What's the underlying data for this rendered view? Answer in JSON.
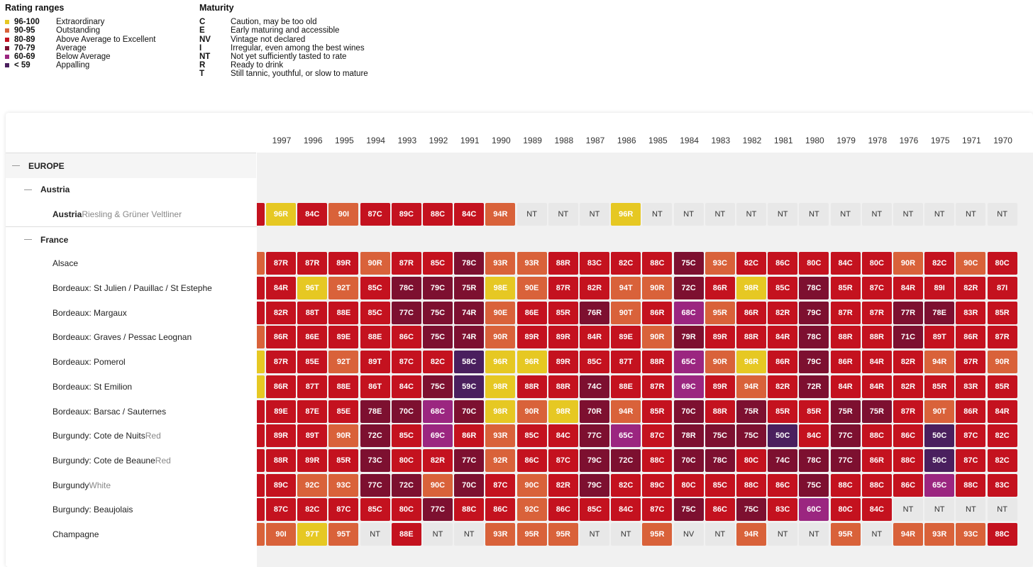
{
  "colors": {
    "r96": "#e6c823",
    "r90": "#d9623a",
    "r80": "#c4121f",
    "r70": "#7d1030",
    "r60": "#9b2680",
    "r59": "#4a1f5e",
    "nt": "#e8e8e8"
  },
  "legend": {
    "rating_title": "Rating ranges",
    "ratings": [
      {
        "code": "96-100",
        "label": "Extraordinary",
        "color": "#e6c823"
      },
      {
        "code": "90-95",
        "label": "Outstanding",
        "color": "#d9623a"
      },
      {
        "code": "80-89",
        "label": "Above Average to Excellent",
        "color": "#c4121f"
      },
      {
        "code": "70-79",
        "label": "Average",
        "color": "#7d1030"
      },
      {
        "code": "60-69",
        "label": "Below Average",
        "color": "#9b2680"
      },
      {
        "code": "< 59",
        "label": "Appalling",
        "color": "#4a1f5e"
      }
    ],
    "maturity_title": "Maturity",
    "maturity": [
      {
        "code": "C",
        "label": "Caution, may be too old"
      },
      {
        "code": "E",
        "label": "Early maturing and accessible"
      },
      {
        "code": "NV",
        "label": "Vintage not declared"
      },
      {
        "code": "I",
        "label": "Irregular, even among the best wines"
      },
      {
        "code": "NT",
        "label": "Not yet sufficiently tasted to rate"
      },
      {
        "code": "R",
        "label": "Ready to drink"
      },
      {
        "code": "T",
        "label": "Still tannic, youthful, or slow to mature"
      }
    ]
  },
  "partial_year": "8",
  "years": [
    "1997",
    "1996",
    "1995",
    "1994",
    "1993",
    "1992",
    "1991",
    "1990",
    "1989",
    "1988",
    "1987",
    "1986",
    "1985",
    "1984",
    "1983",
    "1982",
    "1981",
    "1980",
    "1979",
    "1978",
    "1976",
    "1975",
    "1971",
    "1970"
  ],
  "rows": [
    {
      "type": "region",
      "label": "EUROPE"
    },
    {
      "type": "country",
      "label": "Austria"
    },
    {
      "type": "wine",
      "label": "Austria",
      "sub": "Riesling & Grüner Veltliner",
      "bold": true,
      "edge": "r80",
      "cells": [
        "96R",
        "84C",
        "90I",
        "87C",
        "89C",
        "88C",
        "84C",
        "94R",
        "NT",
        "NT",
        "NT",
        "96R",
        "NT",
        "NT",
        "NT",
        "NT",
        "NT",
        "NT",
        "NT",
        "NT",
        "NT",
        "NT",
        "NT",
        "NT"
      ]
    },
    {
      "type": "country",
      "label": "France"
    },
    {
      "type": "wine",
      "label": "Alsace",
      "sub": "",
      "edge": "r90",
      "cells": [
        "87R",
        "87R",
        "89R",
        "90R",
        "87R",
        "85C",
        "78C",
        "93R",
        "93R",
        "88R",
        "83C",
        "82C",
        "88C",
        "75C",
        "93C",
        "82C",
        "86C",
        "80C",
        "84C",
        "80C",
        "90R",
        "82C",
        "90C",
        "80C"
      ]
    },
    {
      "type": "wine",
      "label": "Bordeaux: St Julien / Pauillac / St Estephe",
      "sub": "",
      "edge": "r80",
      "cells": [
        "84R",
        "96T",
        "92T",
        "85C",
        "78C",
        "79C",
        "75R",
        "98E",
        "90E",
        "87R",
        "82R",
        "94T",
        "90R",
        "72C",
        "86R",
        "98R",
        "85C",
        "78C",
        "85R",
        "87C",
        "84R",
        "89I",
        "82R",
        "87I"
      ]
    },
    {
      "type": "wine",
      "label": "Bordeaux: Margaux",
      "sub": "",
      "edge": "r80",
      "cells": [
        "82R",
        "88T",
        "88E",
        "85C",
        "77C",
        "75C",
        "74R",
        "90E",
        "86E",
        "85R",
        "76R",
        "90T",
        "86R",
        "68C",
        "95R",
        "86R",
        "82R",
        "79C",
        "87R",
        "87R",
        "77R",
        "78E",
        "83R",
        "85R"
      ]
    },
    {
      "type": "wine",
      "label": "Bordeaux: Graves / Pessac Leognan",
      "sub": "",
      "edge": "r90",
      "cells": [
        "86R",
        "86E",
        "89E",
        "88E",
        "86C",
        "75C",
        "74R",
        "90R",
        "89R",
        "89R",
        "84R",
        "89E",
        "90R",
        "79R",
        "89R",
        "88R",
        "84R",
        "78C",
        "88R",
        "88R",
        "71C",
        "89T",
        "86R",
        "87R"
      ]
    },
    {
      "type": "wine",
      "label": "Bordeaux: Pomerol",
      "sub": "",
      "edge": "r96",
      "cells": [
        "87R",
        "85E",
        "92T",
        "89T",
        "87C",
        "82C",
        "58C",
        "96R",
        "96R",
        "89R",
        "85C",
        "87T",
        "88R",
        "65C",
        "90R",
        "96R",
        "86R",
        "79C",
        "86R",
        "84R",
        "82R",
        "94R",
        "87R",
        "90R"
      ]
    },
    {
      "type": "wine",
      "label": "Bordeaux: St Emilion",
      "sub": "",
      "edge": "r96",
      "cells": [
        "86R",
        "87T",
        "88E",
        "86T",
        "84C",
        "75C",
        "59C",
        "98R",
        "88R",
        "88R",
        "74C",
        "88E",
        "87R",
        "69C",
        "89R",
        "94R",
        "82R",
        "72R",
        "84R",
        "84R",
        "82R",
        "85R",
        "83R",
        "85R"
      ]
    },
    {
      "type": "wine",
      "label": "Bordeaux: Barsac / Sauternes",
      "sub": "",
      "edge": "r80",
      "cells": [
        "89E",
        "87E",
        "85E",
        "78E",
        "70C",
        "68C",
        "70C",
        "98R",
        "90R",
        "98R",
        "70R",
        "94R",
        "85R",
        "70C",
        "88R",
        "75R",
        "85R",
        "85R",
        "75R",
        "75R",
        "87R",
        "90T",
        "86R",
        "84R"
      ]
    },
    {
      "type": "wine",
      "label": "Burgundy: Cote de Nuits",
      "sub": "Red",
      "edge": "r80",
      "cells": [
        "89R",
        "89T",
        "90R",
        "72C",
        "85C",
        "69C",
        "86R",
        "93R",
        "85C",
        "84C",
        "77C",
        "65C",
        "87C",
        "78R",
        "75C",
        "75C",
        "50C",
        "84C",
        "77C",
        "88C",
        "86C",
        "50C",
        "87C",
        "82C"
      ]
    },
    {
      "type": "wine",
      "label": "Burgundy: Cote de Beaune",
      "sub": "Red",
      "edge": "r80",
      "cells": [
        "88R",
        "89R",
        "85R",
        "73C",
        "80C",
        "82R",
        "77C",
        "92R",
        "86C",
        "87C",
        "79C",
        "72C",
        "88C",
        "70C",
        "78C",
        "80C",
        "74C",
        "78C",
        "77C",
        "86R",
        "88C",
        "50C",
        "87C",
        "82C"
      ]
    },
    {
      "type": "wine",
      "label": "Burgundy",
      "sub": "White",
      "edge": "r80",
      "cells": [
        "89C",
        "92C",
        "93C",
        "77C",
        "72C",
        "90C",
        "70C",
        "87C",
        "90C",
        "82R",
        "79C",
        "82C",
        "89C",
        "80C",
        "85C",
        "88C",
        "86C",
        "75C",
        "88C",
        "88C",
        "86C",
        "65C",
        "88C",
        "83C"
      ]
    },
    {
      "type": "wine",
      "label": "Burgundy: Beaujolais",
      "sub": "",
      "edge": "r80",
      "cells": [
        "87C",
        "82C",
        "87C",
        "85C",
        "80C",
        "77C",
        "88C",
        "86C",
        "92C",
        "86C",
        "85C",
        "84C",
        "87C",
        "75C",
        "86C",
        "75C",
        "83C",
        "60C",
        "80C",
        "84C",
        "NT",
        "NT",
        "NT",
        "NT"
      ]
    },
    {
      "type": "wine",
      "label": "Champagne",
      "sub": "",
      "edge": "r90",
      "cells": [
        "90I",
        "97T",
        "95T",
        "NT",
        "88E",
        "NT",
        "NT",
        "93R",
        "95R",
        "95R",
        "NT",
        "NT",
        "95R",
        "NV",
        "NT",
        "94R",
        "NT",
        "NT",
        "95R",
        "NT",
        "94R",
        "93R",
        "93C",
        "88C"
      ]
    }
  ]
}
